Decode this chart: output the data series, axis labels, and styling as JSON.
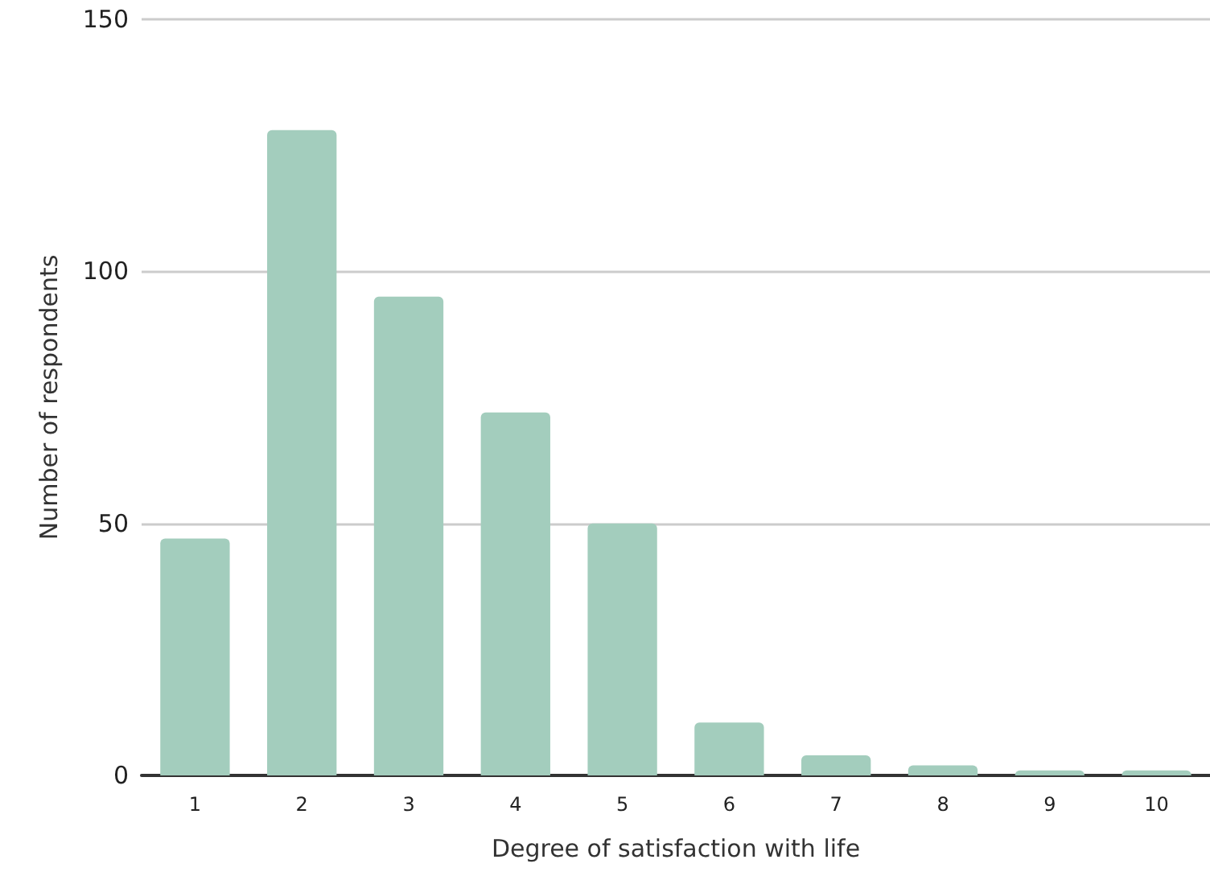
{
  "chart_data": {
    "type": "bar",
    "xlabel": "Degree of satisfaction with life",
    "ylabel": "Number of respondents",
    "categories": [
      "1",
      "2",
      "3",
      "4",
      "5",
      "6",
      "7",
      "8",
      "9",
      "10"
    ],
    "values": [
      47,
      128,
      95,
      72,
      50,
      10.5,
      4,
      2,
      1,
      1
    ],
    "color": "#a3cdbd",
    "ylim": [
      0,
      150
    ],
    "yticks": [
      0,
      50,
      100,
      150
    ],
    "grid": "y"
  }
}
